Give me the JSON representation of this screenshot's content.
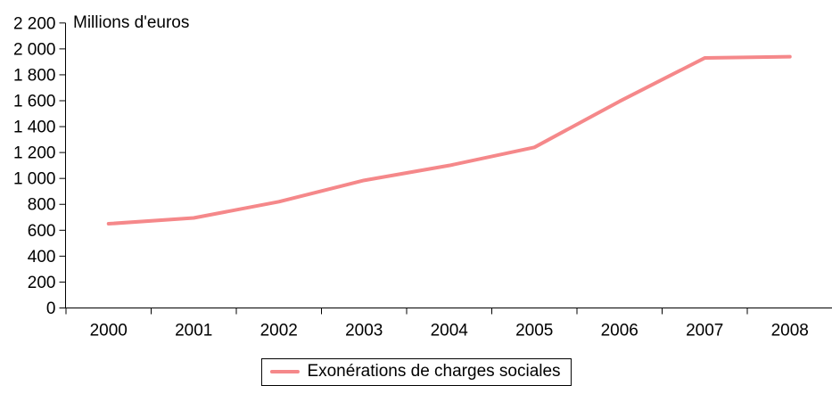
{
  "chart_data": {
    "type": "line",
    "title": "Millions d'euros",
    "categories": [
      "2000",
      "2001",
      "2002",
      "2003",
      "2004",
      "2005",
      "2006",
      "2007",
      "2008"
    ],
    "series": [
      {
        "name": "Exonérations de charges sociales",
        "values": [
          650,
          695,
          820,
          985,
          1100,
          1240,
          1595,
          1930,
          1940
        ],
        "color": "#f5888a"
      }
    ],
    "xlabel": "",
    "ylabel": "Millions d'euros",
    "ylim": [
      0,
      2200
    ],
    "ytick_step": 200,
    "ytick_labels": [
      "0",
      "200",
      "400",
      "600",
      "800",
      "1 000",
      "1 200",
      "1 400",
      "1 600",
      "1 800",
      "2 000",
      "2 200"
    ],
    "grid": false,
    "legend_position": "bottom",
    "axis_color": "#000000",
    "background_color": "#ffffff"
  },
  "legend": {
    "label": "Exonérations de charges sociales"
  }
}
